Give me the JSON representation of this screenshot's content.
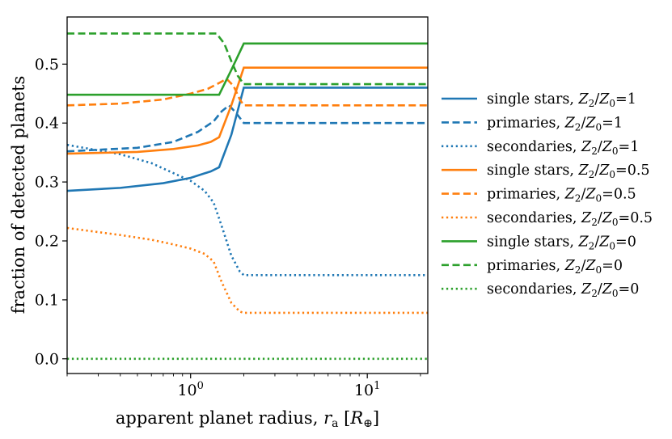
{
  "chart_data": {
    "type": "line",
    "xscale": "log",
    "xlim": [
      0.2,
      22
    ],
    "ylim": [
      -0.025,
      0.58
    ],
    "xlabel": "apparent planet radius, r_a [R_⊕]",
    "ylabel": "fraction of detected planets",
    "x_ticks": [
      {
        "value": 1,
        "base": "10",
        "exp": "0"
      },
      {
        "value": 10,
        "base": "10",
        "exp": "1"
      }
    ],
    "y_ticks": [
      {
        "value": 0.0,
        "label": "0.0"
      },
      {
        "value": 0.1,
        "label": "0.1"
      },
      {
        "value": 0.2,
        "label": "0.2"
      },
      {
        "value": 0.3,
        "label": "0.3"
      },
      {
        "value": 0.4,
        "label": "0.4"
      },
      {
        "value": 0.5,
        "label": "0.5"
      }
    ],
    "colors": {
      "blue": "#1f77b4",
      "orange": "#ff7f0e",
      "green": "#2ca02c"
    },
    "series": [
      {
        "name": "single stars, Z2/Z0=1",
        "kind": "single stars",
        "ratio": "1",
        "color": "#1f77b4",
        "style": "solid",
        "points": [
          [
            0.2,
            0.285
          ],
          [
            0.4,
            0.29
          ],
          [
            0.7,
            0.298
          ],
          [
            1.0,
            0.307
          ],
          [
            1.3,
            0.318
          ],
          [
            1.45,
            0.325
          ],
          [
            1.7,
            0.38
          ],
          [
            2.0,
            0.46
          ],
          [
            22,
            0.46
          ]
        ]
      },
      {
        "name": "primaries, Z2/Z0=1",
        "kind": "primaries",
        "ratio": "1",
        "color": "#1f77b4",
        "style": "dashed",
        "points": [
          [
            0.2,
            0.352
          ],
          [
            0.5,
            0.358
          ],
          [
            0.8,
            0.368
          ],
          [
            1.1,
            0.385
          ],
          [
            1.35,
            0.403
          ],
          [
            1.5,
            0.42
          ],
          [
            1.65,
            0.43
          ],
          [
            1.8,
            0.418
          ],
          [
            2.0,
            0.4
          ],
          [
            22,
            0.4
          ]
        ]
      },
      {
        "name": "secondaries, Z2/Z0=1",
        "kind": "secondaries",
        "ratio": "1",
        "color": "#1f77b4",
        "style": "dotted",
        "points": [
          [
            0.2,
            0.363
          ],
          [
            0.4,
            0.347
          ],
          [
            0.6,
            0.332
          ],
          [
            0.8,
            0.315
          ],
          [
            1.0,
            0.302
          ],
          [
            1.2,
            0.285
          ],
          [
            1.35,
            0.265
          ],
          [
            1.5,
            0.225
          ],
          [
            1.7,
            0.175
          ],
          [
            1.9,
            0.148
          ],
          [
            2.0,
            0.142
          ],
          [
            22,
            0.142
          ]
        ]
      },
      {
        "name": "single stars, Z2/Z0=0.5",
        "kind": "single stars",
        "ratio": "0.5",
        "color": "#ff7f0e",
        "style": "solid",
        "points": [
          [
            0.2,
            0.348
          ],
          [
            0.5,
            0.351
          ],
          [
            0.8,
            0.356
          ],
          [
            1.1,
            0.362
          ],
          [
            1.3,
            0.368
          ],
          [
            1.45,
            0.376
          ],
          [
            1.7,
            0.43
          ],
          [
            2.0,
            0.494
          ],
          [
            22,
            0.494
          ]
        ]
      },
      {
        "name": "primaries, Z2/Z0=0.5",
        "kind": "primaries",
        "ratio": "0.5",
        "color": "#ff7f0e",
        "style": "dashed",
        "points": [
          [
            0.2,
            0.43
          ],
          [
            0.4,
            0.433
          ],
          [
            0.7,
            0.44
          ],
          [
            1.0,
            0.45
          ],
          [
            1.25,
            0.458
          ],
          [
            1.45,
            0.468
          ],
          [
            1.6,
            0.475
          ],
          [
            1.75,
            0.463
          ],
          [
            1.9,
            0.44
          ],
          [
            2.0,
            0.43
          ],
          [
            22,
            0.43
          ]
        ]
      },
      {
        "name": "secondaries, Z2/Z0=0.5",
        "kind": "secondaries",
        "ratio": "0.5",
        "color": "#ff7f0e",
        "style": "dotted",
        "points": [
          [
            0.2,
            0.222
          ],
          [
            0.4,
            0.21
          ],
          [
            0.6,
            0.202
          ],
          [
            0.8,
            0.194
          ],
          [
            1.0,
            0.187
          ],
          [
            1.2,
            0.178
          ],
          [
            1.35,
            0.165
          ],
          [
            1.5,
            0.13
          ],
          [
            1.7,
            0.095
          ],
          [
            1.9,
            0.08
          ],
          [
            2.0,
            0.078
          ],
          [
            22,
            0.078
          ]
        ]
      },
      {
        "name": "single stars, Z2/Z0=0",
        "kind": "single stars",
        "ratio": "0",
        "color": "#2ca02c",
        "style": "solid",
        "points": [
          [
            0.2,
            0.448
          ],
          [
            1.0,
            0.448
          ],
          [
            1.45,
            0.448
          ],
          [
            1.7,
            0.49
          ],
          [
            2.0,
            0.535
          ],
          [
            22,
            0.535
          ]
        ]
      },
      {
        "name": "primaries, Z2/Z0=0",
        "kind": "primaries",
        "ratio": "0",
        "color": "#2ca02c",
        "style": "dashed",
        "points": [
          [
            0.2,
            0.552
          ],
          [
            1.0,
            0.552
          ],
          [
            1.4,
            0.552
          ],
          [
            1.55,
            0.535
          ],
          [
            1.7,
            0.505
          ],
          [
            1.85,
            0.48
          ],
          [
            2.0,
            0.466
          ],
          [
            22,
            0.466
          ]
        ]
      },
      {
        "name": "secondaries, Z2/Z0=0",
        "kind": "secondaries",
        "ratio": "0",
        "color": "#2ca02c",
        "style": "dotted",
        "points": [
          [
            0.2,
            0.0
          ],
          [
            22,
            0.0
          ]
        ]
      }
    ]
  }
}
